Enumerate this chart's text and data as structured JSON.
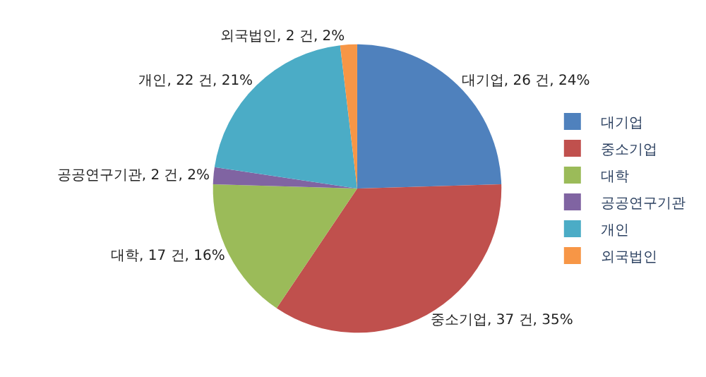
{
  "chart_data": {
    "type": "pie",
    "categories": [
      "대기업",
      "중소기업",
      "대학",
      "공공연구기관",
      "개인",
      "외국법인"
    ],
    "values": [
      26,
      37,
      17,
      2,
      22,
      2
    ],
    "colors": [
      "#4f81bd",
      "#c0504d",
      "#9bbb59",
      "#8064a2",
      "#4bacc6",
      "#f79646"
    ],
    "value_labels": [
      "대기업, 26 건, 24%",
      "중소기업, 37 건, 35%",
      "대학, 17 건, 16%",
      "공공연구기관, 2 건, 2%",
      "개인, 22 건, 21%",
      "외국법인, 2 건, 2%"
    ],
    "legend": "right"
  }
}
